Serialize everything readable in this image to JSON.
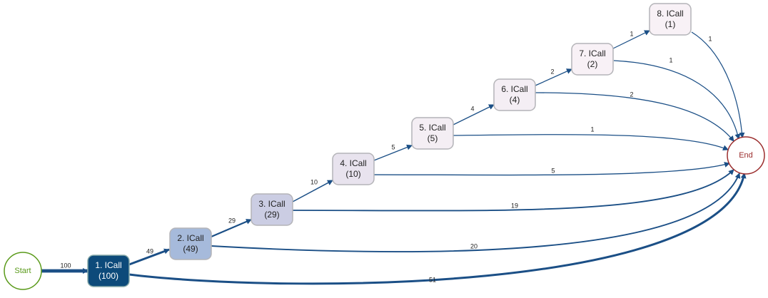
{
  "nodes": [
    {
      "label": "Start",
      "color": "#ffffff"
    },
    {
      "label": "1. ICall",
      "sub": "(100)",
      "color": "#0d4a7a"
    },
    {
      "label": "2. ICall",
      "sub": "(49)",
      "color": "#a6badb"
    },
    {
      "label": "3. ICall",
      "sub": "(29)",
      "color": "#cbcde3"
    },
    {
      "label": "4. ICall",
      "sub": "(10)",
      "color": "#e8e3ee"
    },
    {
      "label": "5. ICall",
      "sub": "(5)",
      "color": "#f4eef4"
    },
    {
      "label": "6. ICall",
      "sub": "(4)",
      "color": "#f4eef4"
    },
    {
      "label": "7. ICall",
      "sub": "(2)",
      "color": "#f8f1f6"
    },
    {
      "label": "8. ICall",
      "sub": "(1)",
      "color": "#f8f1f6"
    },
    {
      "label": "End",
      "color": "#ffffff"
    }
  ],
  "edges": [
    {
      "value": 100
    },
    {
      "value": 49
    },
    {
      "value": 29
    },
    {
      "value": 10
    },
    {
      "value": 5
    },
    {
      "value": 4
    },
    {
      "value": 2
    },
    {
      "value": 1
    },
    {
      "value": 1
    },
    {
      "value": 1
    },
    {
      "value": 2
    },
    {
      "value": 1
    },
    {
      "value": 5
    },
    {
      "value": 19
    },
    {
      "value": 20
    },
    {
      "value": 51
    }
  ]
}
